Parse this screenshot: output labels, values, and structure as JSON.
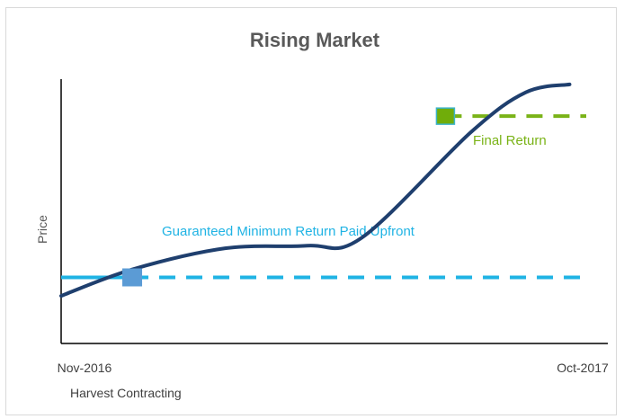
{
  "chart_data": {
    "type": "line",
    "title": "Rising Market",
    "ylabel": "Price",
    "x_ticks": [
      "Nov-2016",
      "Oct-2017"
    ],
    "footer_label": "Harvest Contracting",
    "grid": false,
    "legend": "none",
    "series": [
      {
        "values_x": [
          0.0,
          0.13,
          0.3,
          0.45,
          0.55,
          0.75,
          0.85,
          0.93
        ],
        "values_y": [
          0.18,
          0.28,
          0.36,
          0.37,
          0.4,
          0.8,
          0.95,
          0.98
        ],
        "color": "#1f3f6e"
      }
    ],
    "annotations": {
      "guaranteed": {
        "label": "Guaranteed Minimum Return Paid Upfront",
        "level": 0.25,
        "color": "#1fb3e4",
        "marker_color": "#5b9bd5"
      },
      "final": {
        "label": "Final Return",
        "level": 0.86,
        "color": "#7ab317",
        "marker_color": "#70ad0a"
      }
    }
  }
}
